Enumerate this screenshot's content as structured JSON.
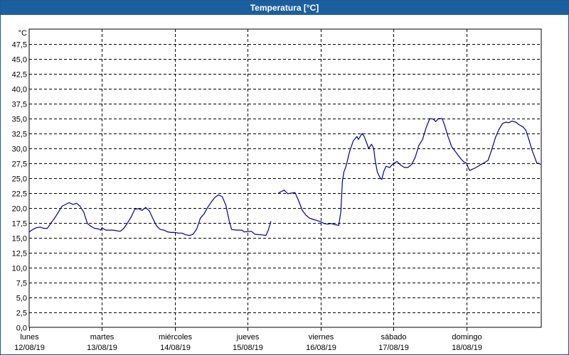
{
  "window": {
    "title": "Temperatura [°C]"
  },
  "chart_data": {
    "type": "line",
    "title": "Temperatura [°C]",
    "ylabel": "°C",
    "ylim": [
      0,
      50
    ],
    "y_ticks": [
      "0,0",
      "2,5",
      "5,0",
      "7,5",
      "10,0",
      "12,5",
      "15,0",
      "17,5",
      "20,0",
      "22,5",
      "25,0",
      "27,5",
      "30,0",
      "32,5",
      "35,0",
      "37,5",
      "40,0",
      "42,5",
      "45,0",
      "47,5"
    ],
    "y_tick_values": [
      0,
      2.5,
      5,
      7.5,
      10,
      12.5,
      15,
      17.5,
      20,
      22.5,
      25,
      27.5,
      30,
      32.5,
      35,
      37.5,
      40,
      42.5,
      45,
      47.5
    ],
    "x_days": [
      {
        "day": "lunes",
        "date": "12/08/19"
      },
      {
        "day": "martes",
        "date": "13/08/19"
      },
      {
        "day": "miércoles",
        "date": "14/08/19"
      },
      {
        "day": "jueves",
        "date": "15/08/19"
      },
      {
        "day": "viernes",
        "date": "16/08/19"
      },
      {
        "day": "sábado",
        "date": "17/08/19"
      },
      {
        "day": "domingo",
        "date": "18/08/19"
      }
    ],
    "grid": true,
    "line_color": "#00008b",
    "series": [
      {
        "segments": [
          [
            [
              0.0,
              16.0
            ],
            [
              0.05,
              16.4
            ],
            [
              0.1,
              16.7
            ],
            [
              0.15,
              16.8
            ],
            [
              0.2,
              16.6
            ],
            [
              0.25,
              16.6
            ],
            [
              0.3,
              17.5
            ],
            [
              0.35,
              18.3
            ],
            [
              0.4,
              19.3
            ],
            [
              0.45,
              20.3
            ],
            [
              0.5,
              20.6
            ],
            [
              0.55,
              20.9
            ],
            [
              0.6,
              20.6
            ],
            [
              0.65,
              20.8
            ],
            [
              0.7,
              20.3
            ],
            [
              0.75,
              19.3
            ],
            [
              0.8,
              17.4
            ],
            [
              0.85,
              16.9
            ],
            [
              0.9,
              16.6
            ],
            [
              0.95,
              16.5
            ],
            [
              0.98,
              16.3
            ],
            [
              1.0,
              16.7
            ],
            [
              1.05,
              16.3
            ],
            [
              1.15,
              16.3
            ],
            [
              1.25,
              16.1
            ],
            [
              1.3,
              16.6
            ],
            [
              1.35,
              17.5
            ],
            [
              1.4,
              18.5
            ],
            [
              1.45,
              19.8
            ],
            [
              1.5,
              19.9
            ],
            [
              1.55,
              19.6
            ],
            [
              1.6,
              20.1
            ],
            [
              1.65,
              19.5
            ],
            [
              1.7,
              18.2
            ],
            [
              1.75,
              17.0
            ],
            [
              1.8,
              16.4
            ],
            [
              1.85,
              16.3
            ],
            [
              1.9,
              16.0
            ],
            [
              1.95,
              15.9
            ],
            [
              2.0,
              15.9
            ],
            [
              2.05,
              15.8
            ],
            [
              2.1,
              15.8
            ],
            [
              2.15,
              15.5
            ],
            [
              2.2,
              15.4
            ],
            [
              2.25,
              15.6
            ],
            [
              2.3,
              16.5
            ],
            [
              2.35,
              18.3
            ],
            [
              2.4,
              19.0
            ],
            [
              2.45,
              20.1
            ],
            [
              2.5,
              21.0
            ],
            [
              2.55,
              21.8
            ],
            [
              2.6,
              22.2
            ],
            [
              2.65,
              21.9
            ],
            [
              2.7,
              20.5
            ],
            [
              2.75,
              17.6
            ],
            [
              2.78,
              16.4
            ],
            [
              2.85,
              16.3
            ],
            [
              2.92,
              16.3
            ],
            [
              2.95,
              16.0
            ],
            [
              3.05,
              16.1
            ],
            [
              3.1,
              15.6
            ],
            [
              3.2,
              15.5
            ],
            [
              3.25,
              15.4
            ],
            [
              3.28,
              16.2
            ],
            [
              3.32,
              17.8
            ]
          ],
          [
            [
              3.42,
              22.5
            ],
            [
              3.5,
              23.0
            ],
            [
              3.55,
              22.4
            ],
            [
              3.6,
              22.5
            ],
            [
              3.65,
              22.6
            ],
            [
              3.7,
              21.2
            ],
            [
              3.75,
              19.6
            ],
            [
              3.8,
              18.8
            ],
            [
              3.85,
              18.3
            ],
            [
              3.9,
              18.1
            ],
            [
              3.95,
              17.9
            ],
            [
              4.0,
              17.7
            ],
            [
              4.05,
              17.4
            ],
            [
              4.1,
              17.3
            ],
            [
              4.15,
              17.4
            ],
            [
              4.2,
              17.2
            ],
            [
              4.25,
              17.1
            ],
            [
              4.28,
              19.5
            ],
            [
              4.3,
              24.5
            ],
            [
              4.32,
              26.0
            ],
            [
              4.35,
              27.0
            ],
            [
              4.4,
              29.5
            ],
            [
              4.45,
              31.3
            ],
            [
              4.5,
              32.0
            ],
            [
              4.52,
              31.5
            ],
            [
              4.57,
              32.5
            ],
            [
              4.6,
              32.0
            ],
            [
              4.63,
              31.0
            ],
            [
              4.66,
              30.0
            ],
            [
              4.7,
              30.7
            ],
            [
              4.73,
              30.0
            ],
            [
              4.75,
              28.0
            ],
            [
              4.78,
              26.0
            ],
            [
              4.82,
              25.0
            ],
            [
              4.84,
              24.8
            ],
            [
              4.87,
              26.2
            ],
            [
              4.9,
              27.0
            ],
            [
              4.95,
              26.8
            ],
            [
              5.0,
              27.5
            ],
            [
              5.05,
              27.8
            ],
            [
              5.1,
              27.2
            ],
            [
              5.15,
              26.8
            ],
            [
              5.2,
              26.8
            ],
            [
              5.25,
              27.3
            ],
            [
              5.3,
              28.5
            ],
            [
              5.35,
              30.5
            ],
            [
              5.4,
              31.5
            ],
            [
              5.45,
              33.5
            ],
            [
              5.5,
              35.0
            ],
            [
              5.55,
              34.9
            ],
            [
              5.58,
              34.5
            ],
            [
              5.62,
              35.0
            ],
            [
              5.67,
              35.0
            ],
            [
              5.7,
              34.0
            ],
            [
              5.75,
              32.0
            ],
            [
              5.8,
              30.3
            ],
            [
              5.85,
              29.5
            ],
            [
              5.88,
              29.0
            ],
            [
              5.93,
              28.2
            ],
            [
              5.97,
              27.7
            ],
            [
              6.0,
              27.6
            ],
            [
              6.03,
              26.7
            ],
            [
              6.05,
              26.3
            ],
            [
              6.1,
              26.6
            ],
            [
              6.15,
              26.9
            ],
            [
              6.2,
              27.3
            ],
            [
              6.25,
              27.6
            ],
            [
              6.3,
              28.0
            ],
            [
              6.35,
              29.8
            ],
            [
              6.4,
              31.8
            ],
            [
              6.45,
              33.2
            ],
            [
              6.5,
              34.2
            ],
            [
              6.55,
              34.4
            ],
            [
              6.58,
              34.3
            ],
            [
              6.63,
              34.6
            ],
            [
              6.68,
              34.4
            ],
            [
              6.72,
              34.0
            ],
            [
              6.78,
              33.6
            ],
            [
              6.82,
              33.0
            ],
            [
              6.86,
              31.5
            ],
            [
              6.9,
              29.8
            ],
            [
              6.94,
              28.5
            ],
            [
              6.97,
              27.5
            ],
            [
              7.0,
              27.5
            ],
            [
              7.02,
              27.3
            ]
          ]
        ]
      }
    ]
  }
}
